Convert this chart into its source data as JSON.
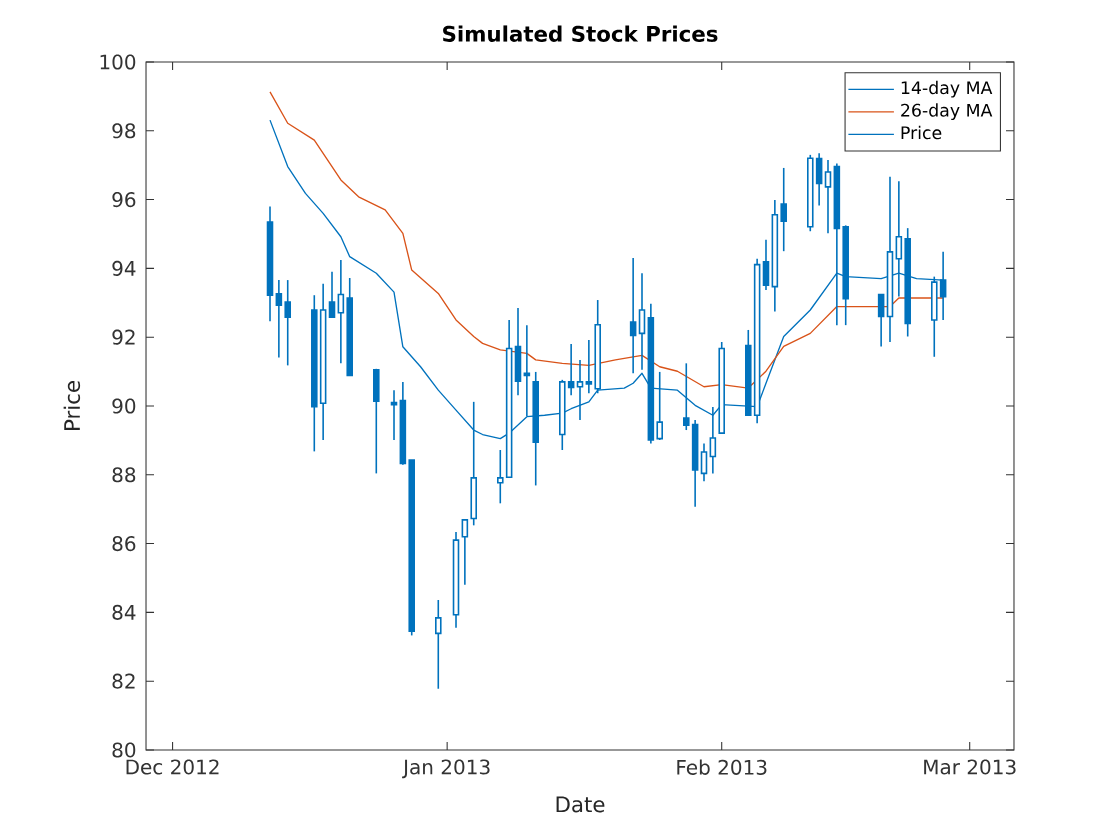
{
  "chart_data": {
    "type": "candlestick",
    "title": "Simulated Stock Prices",
    "xlabel": "Date",
    "ylabel": "Price",
    "xlim": [
      "2012-11-28",
      "2013-03-06"
    ],
    "ylim": [
      80,
      100
    ],
    "xticks": [
      {
        "value": "2012-12-01",
        "label": "Dec 2012"
      },
      {
        "value": "2013-01-01",
        "label": "Jan 2013"
      },
      {
        "value": "2013-02-01",
        "label": "Feb 2013"
      },
      {
        "value": "2013-03-01",
        "label": "Mar 2013"
      }
    ],
    "yticks": [
      80,
      82,
      84,
      86,
      88,
      90,
      92,
      94,
      96,
      98,
      100
    ],
    "legend": "top right",
    "series": [
      {
        "name": "14-day MA",
        "type": "line",
        "color": "#0072bd",
        "x": [
          "2012-12-12",
          "2012-12-14",
          "2012-12-16",
          "2012-12-18",
          "2012-12-20",
          "2012-12-21",
          "2012-12-24",
          "2012-12-26",
          "2012-12-27",
          "2012-12-29",
          "2012-12-31",
          "2013-01-02",
          "2013-01-04",
          "2013-01-05",
          "2013-01-07",
          "2013-01-08",
          "2013-01-10",
          "2013-01-12",
          "2013-01-14",
          "2013-01-15",
          "2013-01-17",
          "2013-01-18",
          "2013-01-21",
          "2013-01-22",
          "2013-01-23",
          "2013-01-24",
          "2013-01-27",
          "2013-01-29",
          "2013-01-31",
          "2013-02-01",
          "2013-02-05",
          "2013-02-06",
          "2013-02-08",
          "2013-02-11",
          "2013-02-14",
          "2013-02-15",
          "2013-02-19",
          "2013-02-21",
          "2013-02-23",
          "2013-02-26"
        ],
        "values": [
          98.31,
          96.96,
          96.18,
          95.6,
          94.92,
          94.34,
          93.86,
          93.31,
          91.72,
          91.14,
          90.46,
          89.88,
          89.3,
          89.17,
          89.05,
          89.21,
          89.69,
          89.73,
          89.79,
          89.92,
          90.12,
          90.46,
          90.52,
          90.66,
          90.95,
          90.52,
          90.46,
          90.02,
          89.73,
          90.04,
          89.98,
          90.66,
          92.02,
          92.79,
          93.86,
          93.76,
          93.7,
          93.86,
          93.7,
          93.66
        ]
      },
      {
        "name": "26-day MA",
        "type": "line",
        "color": "#d95319",
        "x": [
          "2012-12-12",
          "2012-12-14",
          "2012-12-17",
          "2012-12-20",
          "2012-12-22",
          "2012-12-25",
          "2012-12-27",
          "2012-12-28",
          "2012-12-31",
          "2013-01-02",
          "2013-01-04",
          "2013-01-05",
          "2013-01-07",
          "2013-01-10",
          "2013-01-11",
          "2013-01-14",
          "2013-01-17",
          "2013-01-20",
          "2013-01-23",
          "2013-01-25",
          "2013-01-27",
          "2013-01-30",
          "2013-02-01",
          "2013-02-04",
          "2013-02-06",
          "2013-02-08",
          "2013-02-11",
          "2013-02-14",
          "2013-02-20",
          "2013-02-21",
          "2013-02-26"
        ],
        "values": [
          99.13,
          98.22,
          97.73,
          96.57,
          96.08,
          95.7,
          95.02,
          93.95,
          93.27,
          92.5,
          92.02,
          91.82,
          91.63,
          91.53,
          91.34,
          91.24,
          91.18,
          91.34,
          91.47,
          91.14,
          91.01,
          90.56,
          90.62,
          90.52,
          91.01,
          91.73,
          92.11,
          92.89,
          92.89,
          93.14,
          93.14
        ]
      },
      {
        "name": "Price",
        "color": "#0072bd",
        "x": [
          "2012-12-12",
          "2012-12-13",
          "2012-12-14",
          "2012-12-17",
          "2012-12-18",
          "2012-12-19",
          "2012-12-20",
          "2012-12-21",
          "2012-12-24",
          "2012-12-26",
          "2012-12-27",
          "2012-12-28",
          "2012-12-31",
          "2013-01-02",
          "2013-01-03",
          "2013-01-04",
          "2013-01-07",
          "2013-01-08",
          "2013-01-09",
          "2013-01-10",
          "2013-01-11",
          "2013-01-14",
          "2013-01-15",
          "2013-01-16",
          "2013-01-17",
          "2013-01-18",
          "2013-01-22",
          "2013-01-23",
          "2013-01-24",
          "2013-01-25",
          "2013-01-28",
          "2013-01-29",
          "2013-01-30",
          "2013-01-31",
          "2013-02-01",
          "2013-02-04",
          "2013-02-05",
          "2013-02-06",
          "2013-02-07",
          "2013-02-08",
          "2013-02-11",
          "2013-02-12",
          "2013-02-13",
          "2013-02-14",
          "2013-02-15",
          "2013-02-19",
          "2013-02-20",
          "2013-02-21",
          "2013-02-22",
          "2013-02-25",
          "2013-02-26"
        ],
        "ohlc": [
          [
            95.35,
            95.8,
            92.46,
            93.22
          ],
          [
            93.26,
            93.66,
            91.41,
            92.93
          ],
          [
            93.02,
            93.66,
            91.18,
            92.58
          ],
          [
            92.79,
            93.22,
            88.68,
            89.98
          ],
          [
            90.08,
            93.55,
            89.01,
            92.79
          ],
          [
            93.02,
            93.9,
            92.56,
            92.58
          ],
          [
            92.71,
            94.24,
            91.24,
            93.24
          ],
          [
            93.14,
            93.72,
            90.89,
            90.89
          ],
          [
            91.05,
            91.08,
            88.04,
            90.14
          ],
          [
            90.1,
            90.46,
            89.01,
            90.04
          ],
          [
            90.16,
            90.7,
            88.29,
            88.33
          ],
          [
            88.43,
            88.43,
            83.33,
            83.45
          ],
          [
            83.39,
            84.36,
            81.78,
            83.84
          ],
          [
            83.93,
            86.34,
            83.55,
            86.1
          ],
          [
            86.2,
            86.69,
            84.8,
            86.69
          ],
          [
            86.73,
            90.12,
            86.53,
            87.91
          ],
          [
            87.77,
            88.72,
            87.17,
            87.91
          ],
          [
            87.93,
            92.5,
            87.93,
            91.67
          ],
          [
            91.73,
            92.85,
            90.31,
            90.72
          ],
          [
            90.95,
            92.35,
            89.71,
            90.89
          ],
          [
            90.7,
            90.99,
            87.69,
            88.95
          ],
          [
            89.17,
            90.76,
            88.72,
            90.7
          ],
          [
            90.7,
            91.8,
            90.31,
            90.54
          ],
          [
            90.56,
            91.34,
            89.59,
            90.7
          ],
          [
            90.7,
            91.92,
            90.37,
            90.64
          ],
          [
            90.5,
            93.08,
            90.37,
            92.36
          ],
          [
            92.44,
            94.3,
            90.95,
            92.05
          ],
          [
            92.11,
            93.86,
            91.05,
            92.79
          ],
          [
            92.56,
            92.97,
            88.91,
            89.01
          ],
          [
            89.05,
            90.99,
            89.01,
            89.53
          ],
          [
            89.65,
            91.24,
            89.3,
            89.44
          ],
          [
            89.46,
            89.59,
            87.07,
            88.14
          ],
          [
            88.04,
            88.91,
            87.81,
            88.66
          ],
          [
            88.53,
            89.97,
            88.04,
            89.07
          ],
          [
            89.21,
            91.86,
            89.21,
            91.67
          ],
          [
            91.76,
            92.21,
            89.73,
            89.73
          ],
          [
            89.73,
            94.28,
            89.5,
            94.11
          ],
          [
            94.19,
            94.83,
            93.37,
            93.51
          ],
          [
            93.47,
            95.99,
            92.75,
            95.56
          ],
          [
            95.87,
            96.92,
            94.5,
            95.37
          ],
          [
            95.21,
            97.3,
            95.08,
            97.2
          ],
          [
            97.19,
            97.35,
            95.83,
            96.47
          ],
          [
            96.37,
            97.15,
            95.02,
            96.8
          ],
          [
            96.96,
            97.05,
            92.35,
            95.16
          ],
          [
            95.21,
            95.25,
            92.35,
            93.12
          ],
          [
            93.24,
            93.24,
            91.73,
            92.6
          ],
          [
            92.6,
            96.66,
            91.86,
            94.48
          ],
          [
            94.28,
            96.53,
            93.18,
            94.92
          ],
          [
            94.86,
            95.17,
            92.02,
            92.4
          ],
          [
            92.5,
            93.76,
            91.43,
            93.6
          ],
          [
            93.66,
            94.48,
            92.5,
            93.18
          ]
        ]
      }
    ]
  }
}
